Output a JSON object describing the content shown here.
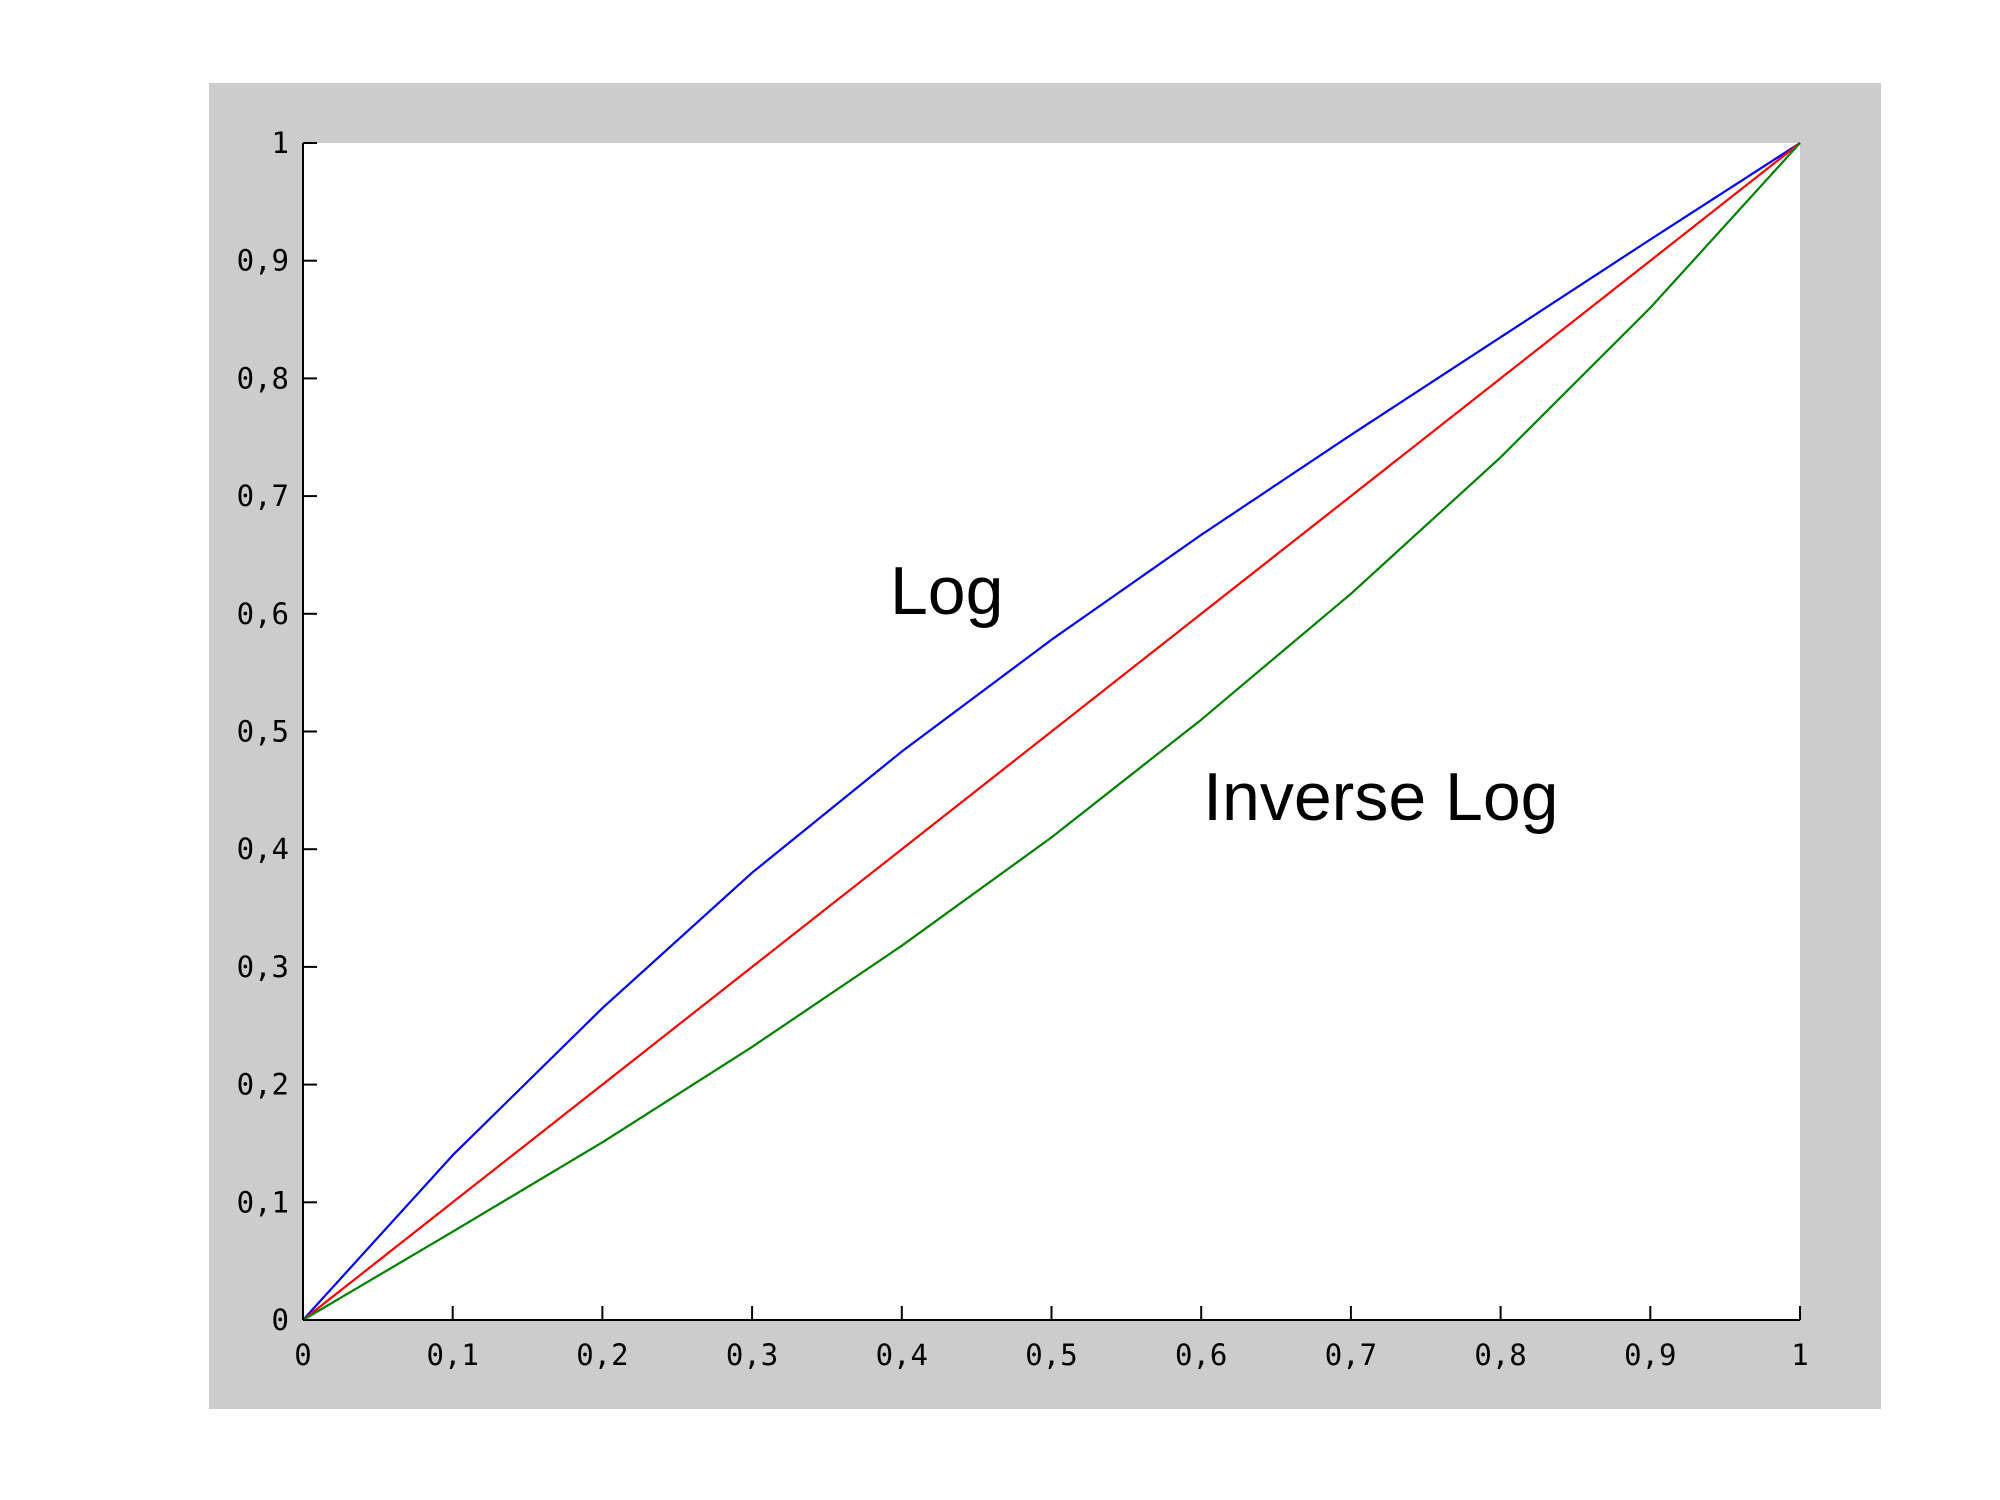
{
  "chart_data": {
    "type": "line",
    "title": "",
    "xlabel": "",
    "ylabel": "",
    "xlim": [
      0,
      1
    ],
    "ylim": [
      0,
      1
    ],
    "grid": false,
    "x_ticks": [
      "0",
      "0,1",
      "0,2",
      "0,3",
      "0,4",
      "0,5",
      "0,6",
      "0,7",
      "0,8",
      "0,9",
      "1"
    ],
    "y_ticks": [
      "0",
      "0,1",
      "0,2",
      "0,3",
      "0,4",
      "0,5",
      "0,6",
      "0,7",
      "0,8",
      "0,9",
      "1"
    ],
    "x": [
      0,
      0.1,
      0.2,
      0.3,
      0.4,
      0.5,
      0.6,
      0.7,
      0.8,
      0.9,
      1
    ],
    "series": [
      {
        "color": "#0000ff",
        "values": [
          0,
          0.14,
          0.265,
          0.38,
          0.483,
          0.578,
          0.667,
          0.752,
          0.835,
          0.918,
          1
        ]
      },
      {
        "color": "#ff0000",
        "values": [
          0,
          0.1,
          0.2,
          0.3,
          0.4,
          0.5,
          0.6,
          0.7,
          0.8,
          0.9,
          1
        ]
      },
      {
        "color": "#008000",
        "values": [
          0,
          0.075,
          0.151,
          0.232,
          0.318,
          0.41,
          0.51,
          0.617,
          0.733,
          0.86,
          1
        ]
      }
    ],
    "annotations": [
      {
        "text": "Log",
        "x": 0.43,
        "y": 0.6
      },
      {
        "text": "Inverse Log",
        "x": 0.72,
        "y": 0.425
      }
    ],
    "frame_color": "#cccccc",
    "plot_background": "#ffffff"
  }
}
